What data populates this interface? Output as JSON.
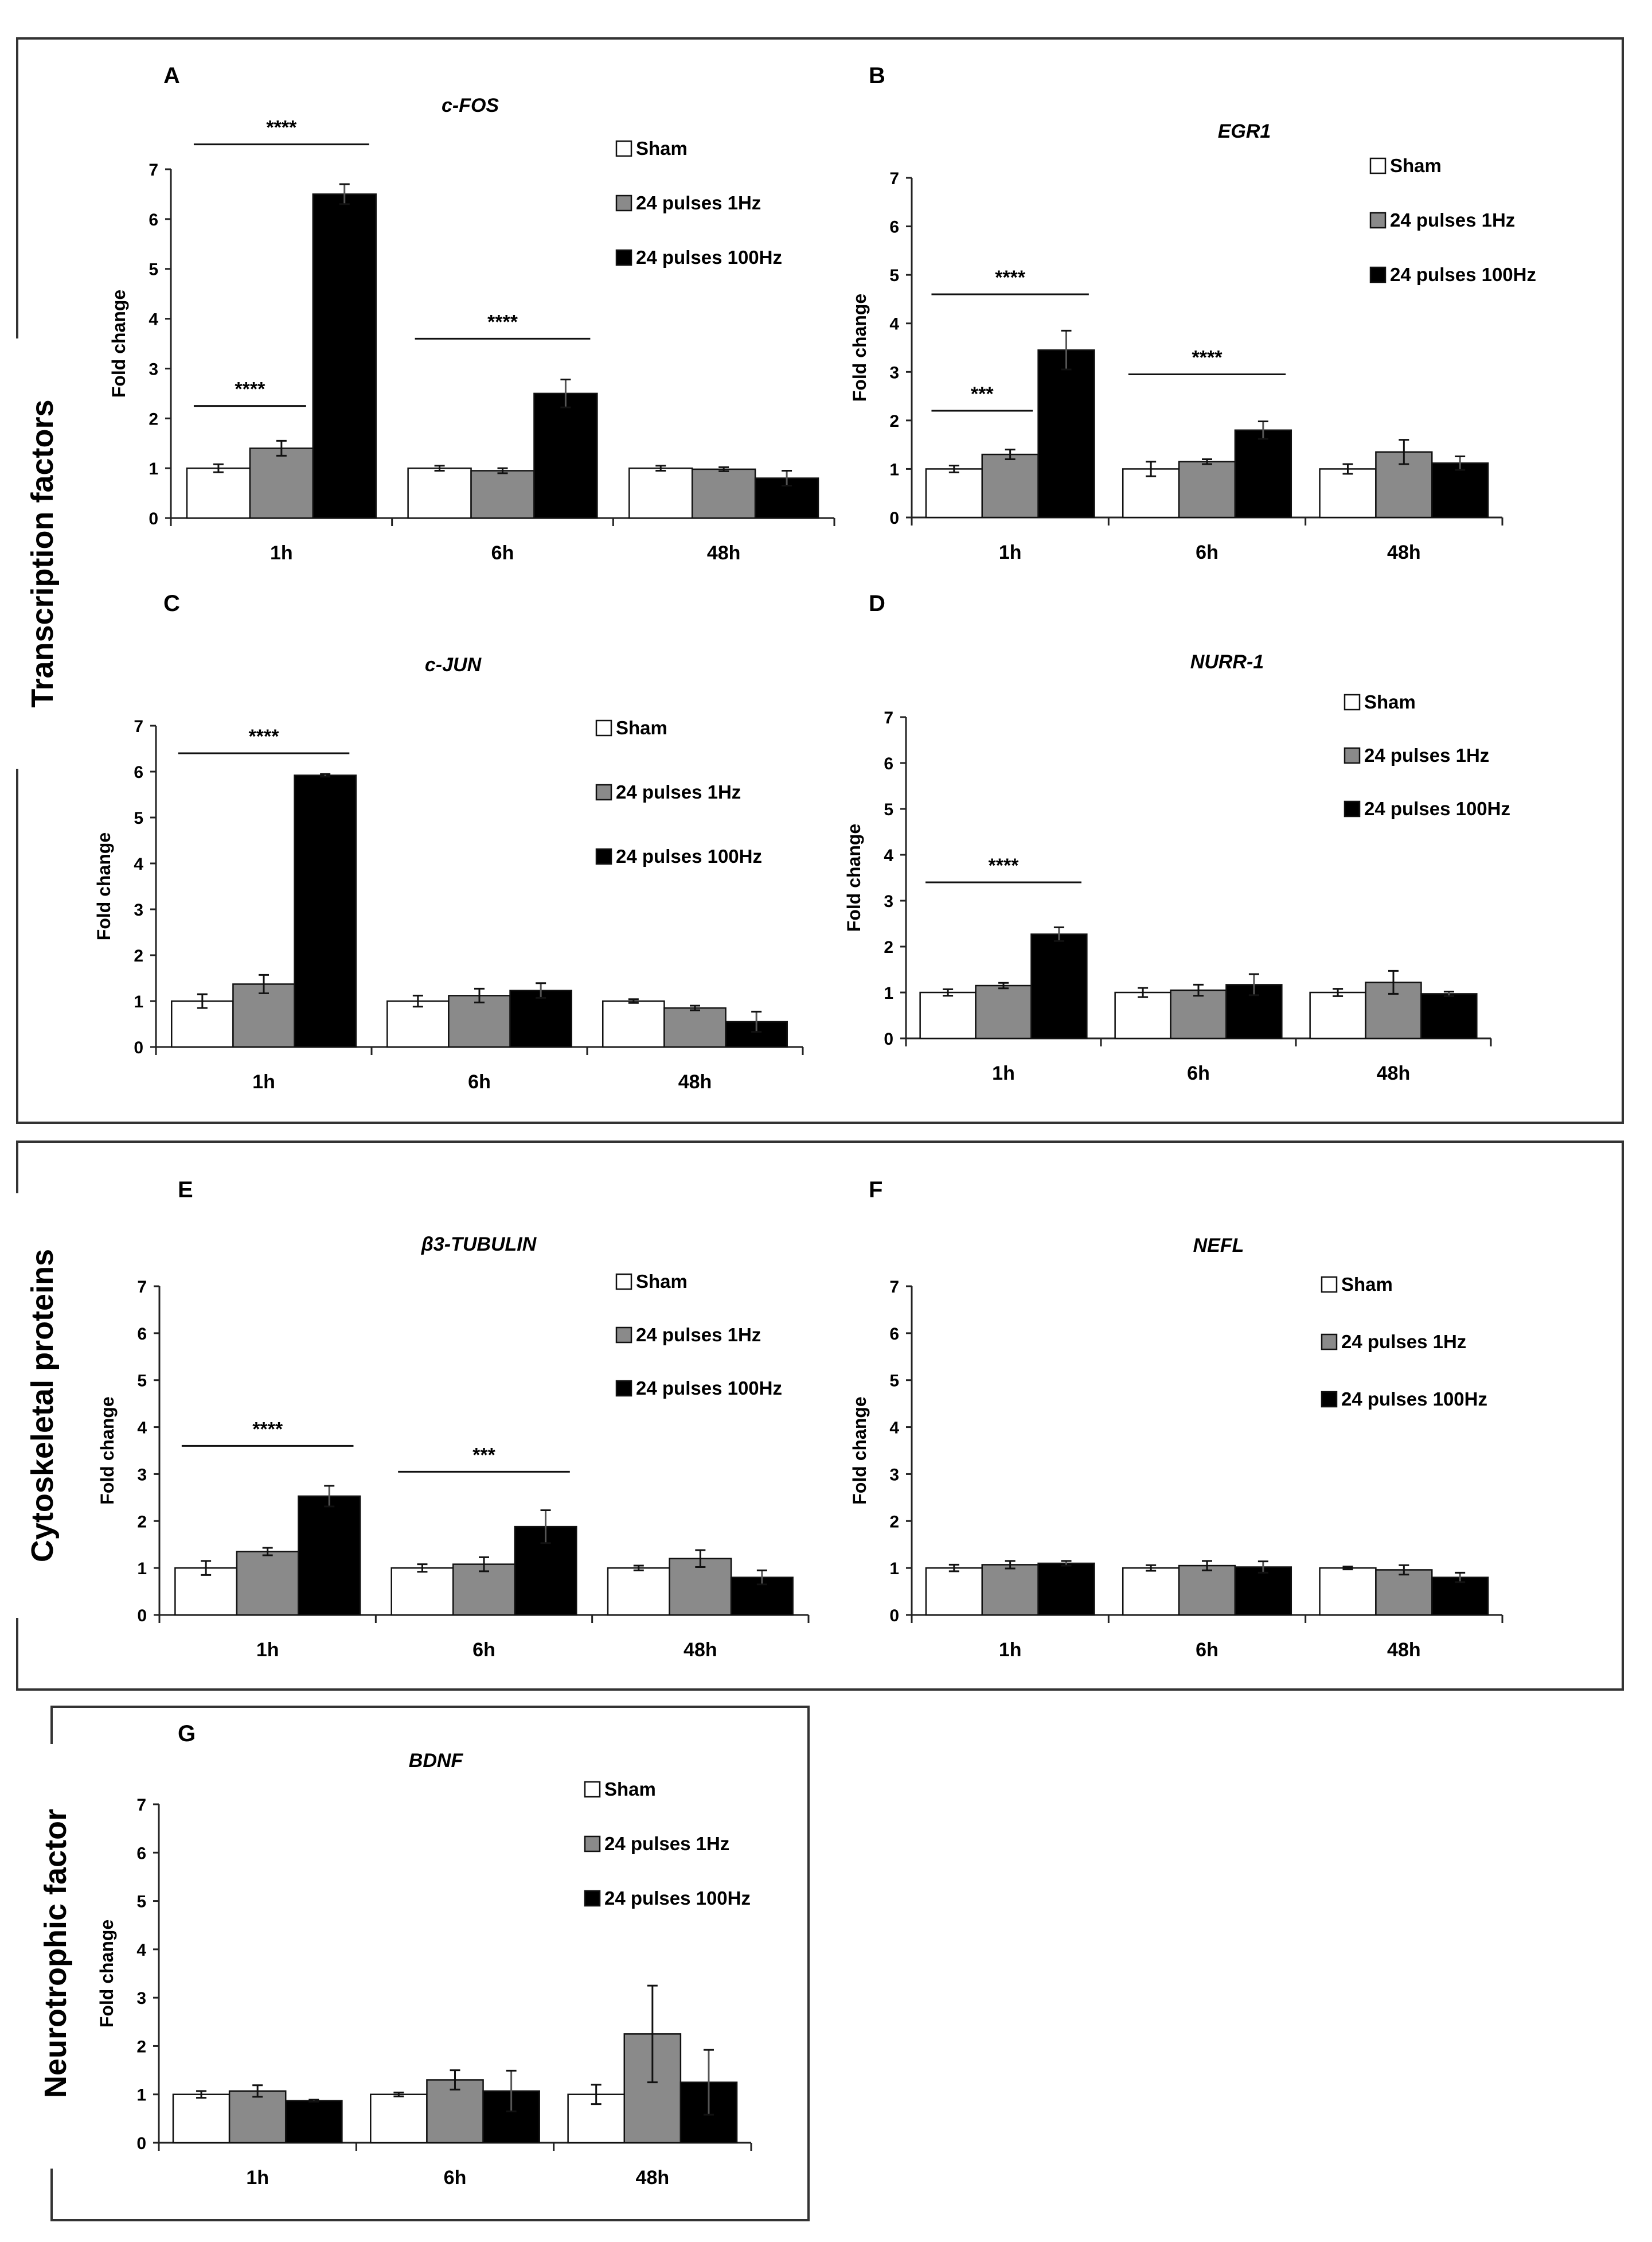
{
  "chart_data": [
    {
      "type": "bar",
      "letter": "A",
      "title": "c-FOS",
      "categories": [
        "1h",
        "6h",
        "48h"
      ],
      "ylabel": "Fold change",
      "ylim": [
        0,
        7
      ],
      "yticks": [
        0,
        1,
        2,
        3,
        4,
        5,
        6,
        7
      ],
      "series": [
        {
          "name": "Sham",
          "values": [
            1.0,
            1.0,
            1.0
          ],
          "errors": [
            0.08,
            0.05,
            0.05
          ]
        },
        {
          "name": "24 pulses 1Hz",
          "values": [
            1.4,
            0.95,
            0.98
          ],
          "errors": [
            0.15,
            0.05,
            0.04
          ]
        },
        {
          "name": "24 pulses 100Hz",
          "values": [
            6.5,
            2.5,
            0.8
          ],
          "errors": [
            0.2,
            0.28,
            0.15
          ]
        }
      ],
      "significance": [
        {
          "label": "****",
          "category": "1h",
          "from": "Sham",
          "to": "24 pulses 100Hz",
          "y": 7.5
        },
        {
          "label": "****",
          "category": "1h",
          "from": "Sham",
          "to": "24 pulses 1Hz",
          "y": 2.25
        },
        {
          "label": "****",
          "category": "6h",
          "from": "Sham",
          "to": "24 pulses 100Hz",
          "y": 3.6
        }
      ]
    },
    {
      "type": "bar",
      "letter": "B",
      "title": "EGR1",
      "categories": [
        "1h",
        "6h",
        "48h"
      ],
      "ylabel": "Fold change",
      "ylim": [
        0,
        7
      ],
      "yticks": [
        0,
        1,
        2,
        3,
        4,
        5,
        6,
        7
      ],
      "series": [
        {
          "name": "Sham",
          "values": [
            1.0,
            1.0,
            1.0
          ],
          "errors": [
            0.07,
            0.15,
            0.1
          ]
        },
        {
          "name": "24 pulses 1Hz",
          "values": [
            1.3,
            1.15,
            1.35
          ],
          "errors": [
            0.1,
            0.05,
            0.25
          ]
        },
        {
          "name": "24 pulses 100Hz",
          "values": [
            3.45,
            1.8,
            1.12
          ],
          "errors": [
            0.4,
            0.18,
            0.14
          ]
        }
      ],
      "significance": [
        {
          "label": "****",
          "category": "1h",
          "from": "Sham",
          "to": "24 pulses 100Hz",
          "y": 4.6
        },
        {
          "label": "***",
          "category": "1h",
          "from": "Sham",
          "to": "24 pulses 1Hz",
          "y": 2.2
        },
        {
          "label": "****",
          "category": "6h",
          "from": "Sham",
          "to": "24 pulses 100Hz",
          "y": 2.95
        }
      ]
    },
    {
      "type": "bar",
      "letter": "C",
      "title": "c-JUN",
      "categories": [
        "1h",
        "6h",
        "48h"
      ],
      "ylabel": "Fold change",
      "ylim": [
        0,
        7
      ],
      "yticks": [
        0,
        1,
        2,
        3,
        4,
        5,
        6,
        7
      ],
      "series": [
        {
          "name": "Sham",
          "values": [
            1.0,
            1.0,
            1.0
          ],
          "errors": [
            0.15,
            0.12,
            0.04
          ]
        },
        {
          "name": "24 pulses 1Hz",
          "values": [
            1.37,
            1.12,
            0.85
          ],
          "errors": [
            0.2,
            0.15,
            0.05
          ]
        },
        {
          "name": "24 pulses 100Hz",
          "values": [
            5.92,
            1.23,
            0.55
          ],
          "errors": [
            0.03,
            0.16,
            0.22
          ]
        }
      ],
      "significance": [
        {
          "label": "****",
          "category": "1h",
          "from": "Sham",
          "to": "24 pulses 100Hz",
          "y": 6.4
        }
      ]
    },
    {
      "type": "bar",
      "letter": "D",
      "title": "NURR-1",
      "categories": [
        "1h",
        "6h",
        "48h"
      ],
      "ylabel": "Fold change",
      "ylim": [
        0,
        7
      ],
      "yticks": [
        0,
        1,
        2,
        3,
        4,
        5,
        6,
        7
      ],
      "series": [
        {
          "name": "Sham",
          "values": [
            1.0,
            1.0,
            1.0
          ],
          "errors": [
            0.07,
            0.1,
            0.08
          ]
        },
        {
          "name": "24 pulses 1Hz",
          "values": [
            1.15,
            1.05,
            1.22
          ],
          "errors": [
            0.06,
            0.12,
            0.25
          ]
        },
        {
          "name": "24 pulses 100Hz",
          "values": [
            2.27,
            1.17,
            0.97
          ],
          "errors": [
            0.15,
            0.23,
            0.05
          ]
        }
      ],
      "significance": [
        {
          "label": "****",
          "category": "1h",
          "from": "Sham",
          "to": "24 pulses 100Hz",
          "y": 3.4
        }
      ]
    },
    {
      "type": "bar",
      "letter": "E",
      "title": "β3-TUBULIN",
      "categories": [
        "1h",
        "6h",
        "48h"
      ],
      "ylabel": "Fold change",
      "ylim": [
        0,
        7
      ],
      "yticks": [
        0,
        1,
        2,
        3,
        4,
        5,
        6,
        7
      ],
      "series": [
        {
          "name": "Sham",
          "values": [
            1.0,
            1.0,
            1.0
          ],
          "errors": [
            0.15,
            0.08,
            0.05
          ]
        },
        {
          "name": "24 pulses 1Hz",
          "values": [
            1.35,
            1.08,
            1.2
          ],
          "errors": [
            0.08,
            0.15,
            0.18
          ]
        },
        {
          "name": "24 pulses 100Hz",
          "values": [
            2.53,
            1.88,
            0.8
          ],
          "errors": [
            0.22,
            0.35,
            0.15
          ]
        }
      ],
      "significance": [
        {
          "label": "****",
          "category": "1h",
          "from": "Sham",
          "to": "24 pulses 100Hz",
          "y": 3.6
        },
        {
          "label": "***",
          "category": "6h",
          "from": "Sham",
          "to": "24 pulses 100Hz",
          "y": 3.05
        }
      ]
    },
    {
      "type": "bar",
      "letter": "F",
      "title": "NEFL",
      "categories": [
        "1h",
        "6h",
        "48h"
      ],
      "ylabel": "Fold change",
      "ylim": [
        0,
        7
      ],
      "yticks": [
        0,
        1,
        2,
        3,
        4,
        5,
        6,
        7
      ],
      "series": [
        {
          "name": "Sham",
          "values": [
            1.0,
            1.0,
            1.0
          ],
          "errors": [
            0.07,
            0.06,
            0.03
          ]
        },
        {
          "name": "24 pulses 1Hz",
          "values": [
            1.07,
            1.05,
            0.96
          ],
          "errors": [
            0.08,
            0.1,
            0.1
          ]
        },
        {
          "name": "24 pulses 100Hz",
          "values": [
            1.1,
            1.02,
            0.8
          ],
          "errors": [
            0.05,
            0.12,
            0.1
          ]
        }
      ],
      "significance": []
    },
    {
      "type": "bar",
      "letter": "G",
      "title": "BDNF",
      "categories": [
        "1h",
        "6h",
        "48h"
      ],
      "ylabel": "Fold change",
      "ylim": [
        0,
        7
      ],
      "yticks": [
        0,
        1,
        2,
        3,
        4,
        5,
        6,
        7
      ],
      "series": [
        {
          "name": "Sham",
          "values": [
            1.0,
            1.0,
            1.0
          ],
          "errors": [
            0.07,
            0.04,
            0.2
          ]
        },
        {
          "name": "24 pulses 1Hz",
          "values": [
            1.07,
            1.3,
            2.25
          ],
          "errors": [
            0.12,
            0.2,
            1.0
          ]
        },
        {
          "name": "24 pulses 100Hz",
          "values": [
            0.87,
            1.07,
            1.25
          ],
          "errors": [
            0.02,
            0.42,
            0.67
          ]
        }
      ],
      "significance": []
    }
  ],
  "sections": [
    {
      "label": "Transcription factors"
    },
    {
      "label": "Cytoskeletal proteins"
    },
    {
      "label": "Neurotrophic factor"
    }
  ],
  "colors": {
    "Sham": "#ffffff",
    "24 pulses 1Hz": "#8a8a8a",
    "24 pulses 100Hz": "#000000",
    "stroke": "#111111",
    "frame": "#333333"
  }
}
